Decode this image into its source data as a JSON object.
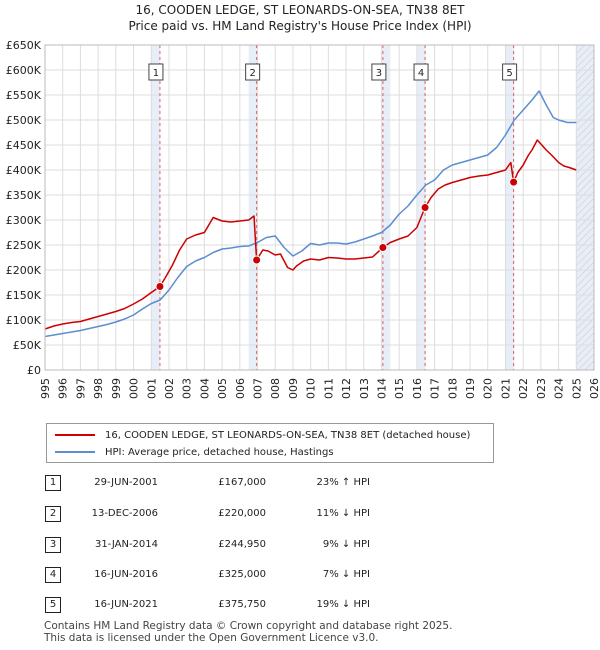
{
  "title": "16, COODEN LEDGE, ST LEONARDS-ON-SEA, TN38 8ET",
  "subtitle": "Price paid vs. HM Land Registry's House Price Index (HPI)",
  "colors": {
    "price": "#cc0000",
    "hpi": "#5b8ed0",
    "band": "#e8eef8",
    "grid": "#dddddd",
    "vline": "#e06060"
  },
  "legend": {
    "price_label": "16, COODEN LEDGE, ST LEONARDS-ON-SEA, TN38 8ET (detached house)",
    "hpi_label": "HPI: Average price, detached house, Hastings"
  },
  "transactions": [
    {
      "id": "1",
      "date": "29-JUN-2001",
      "price": "£167,000",
      "hpi": "23% ↑ HPI"
    },
    {
      "id": "2",
      "date": "13-DEC-2006",
      "price": "£220,000",
      "hpi": "11% ↓ HPI"
    },
    {
      "id": "3",
      "date": "31-JAN-2014",
      "price": "£244,950",
      "hpi": "9% ↓ HPI"
    },
    {
      "id": "4",
      "date": "16-JUN-2016",
      "price": "£325,000",
      "hpi": "7% ↓ HPI"
    },
    {
      "id": "5",
      "date": "16-JUN-2021",
      "price": "£375,750",
      "hpi": "19% ↓ HPI"
    }
  ],
  "footer": {
    "line1": "Contains HM Land Registry data © Crown copyright and database right 2025.",
    "line2": "This data is licensed under the Open Government Licence v3.0."
  },
  "chart_data": {
    "type": "line",
    "title": "16, COODEN LEDGE, ST LEONARDS-ON-SEA, TN38 8ET",
    "subtitle": "Price paid vs. HM Land Registry's House Price Index (HPI)",
    "xlabel": "",
    "ylabel": "",
    "xlim": [
      1995,
      2026
    ],
    "ylim": [
      0,
      650000
    ],
    "grid": true,
    "y_ticks": [
      0,
      50000,
      100000,
      150000,
      200000,
      250000,
      300000,
      350000,
      400000,
      450000,
      500000,
      550000,
      600000,
      650000
    ],
    "y_tick_labels": [
      "£0",
      "£50K",
      "£100K",
      "£150K",
      "£200K",
      "£250K",
      "£300K",
      "£350K",
      "£400K",
      "£450K",
      "£500K",
      "£550K",
      "£600K",
      "£650K"
    ],
    "x_ticks": [
      1995,
      1996,
      1997,
      1998,
      1999,
      2000,
      2001,
      2002,
      2003,
      2004,
      2005,
      2006,
      2007,
      2008,
      2009,
      2010,
      2011,
      2012,
      2013,
      2014,
      2015,
      2016,
      2017,
      2018,
      2019,
      2020,
      2021,
      2022,
      2023,
      2024,
      2025,
      2026
    ],
    "x_tick_labels": [
      "1995",
      "1996",
      "1997",
      "1998",
      "1999",
      "2000",
      "2001",
      "2002",
      "2003",
      "2004",
      "2005",
      "2006",
      "2007",
      "2008",
      "2009",
      "2010",
      "2011",
      "2012",
      "2013",
      "2014",
      "2015",
      "2016",
      "2017",
      "2018",
      "2019",
      "2020",
      "2021",
      "2022",
      "2023",
      "2024",
      "2025",
      "2026"
    ],
    "bands": [
      [
        2001.0,
        2001.5
      ],
      [
        2006.5,
        2007.0
      ],
      [
        2014.0,
        2014.5
      ],
      [
        2016.0,
        2016.5
      ],
      [
        2021.0,
        2021.5
      ],
      [
        2025.0,
        2026.0
      ]
    ],
    "hatched_from": 2025.0,
    "series": [
      {
        "name": "16, COODEN LEDGE, ST LEONARDS-ON-SEA, TN38 8ET (detached house)",
        "x": [
          1995.0,
          1995.5,
          1996.0,
          1996.5,
          1997.0,
          1997.5,
          1998.0,
          1998.5,
          1999.0,
          1999.5,
          2000.0,
          2000.5,
          2001.0,
          2001.49,
          2001.8,
          2002.2,
          2002.6,
          2003.0,
          2003.5,
          2004.0,
          2004.5,
          2005.0,
          2005.5,
          2006.0,
          2006.5,
          2006.8,
          2006.95,
          2007.3,
          2007.6,
          2008.0,
          2008.3,
          2008.7,
          2009.0,
          2009.2,
          2009.6,
          2010.0,
          2010.5,
          2011.0,
          2011.5,
          2012.0,
          2012.5,
          2013.0,
          2013.5,
          2014.08,
          2014.5,
          2015.0,
          2015.5,
          2016.0,
          2016.46,
          2016.8,
          2017.2,
          2017.6,
          2018.0,
          2018.5,
          2019.0,
          2019.5,
          2020.0,
          2020.5,
          2021.0,
          2021.3,
          2021.46,
          2021.7,
          2022.0,
          2022.3,
          2022.5,
          2022.8,
          2023.0,
          2023.3,
          2023.6,
          2024.0,
          2024.3,
          2024.6,
          2025.0
        ],
        "values": [
          82000,
          88000,
          92000,
          95000,
          97000,
          102000,
          107000,
          112000,
          117000,
          123000,
          132000,
          142000,
          155000,
          167000,
          185000,
          210000,
          240000,
          262000,
          270000,
          275000,
          305000,
          298000,
          296000,
          298000,
          300000,
          308000,
          220000,
          240000,
          238000,
          230000,
          232000,
          205000,
          200000,
          208000,
          218000,
          222000,
          220000,
          225000,
          224000,
          222000,
          222000,
          224000,
          226000,
          244950,
          255000,
          262000,
          268000,
          285000,
          325000,
          345000,
          362000,
          370000,
          375000,
          380000,
          385000,
          388000,
          390000,
          395000,
          400000,
          415000,
          375750,
          395000,
          410000,
          430000,
          440000,
          460000,
          452000,
          440000,
          430000,
          415000,
          408000,
          405000,
          400000
        ]
      },
      {
        "name": "HPI: Average price, detached house, Hastings",
        "x": [
          1995.0,
          1995.5,
          1996.0,
          1996.5,
          1997.0,
          1997.5,
          1998.0,
          1998.5,
          1999.0,
          1999.5,
          2000.0,
          2000.5,
          2001.0,
          2001.5,
          2002.0,
          2002.5,
          2003.0,
          2003.5,
          2004.0,
          2004.5,
          2005.0,
          2005.5,
          2006.0,
          2006.5,
          2007.0,
          2007.5,
          2008.0,
          2008.5,
          2009.0,
          2009.5,
          2010.0,
          2010.5,
          2011.0,
          2011.5,
          2012.0,
          2012.5,
          2013.0,
          2013.5,
          2014.0,
          2014.5,
          2015.0,
          2015.5,
          2016.0,
          2016.5,
          2017.0,
          2017.5,
          2018.0,
          2018.5,
          2019.0,
          2019.5,
          2020.0,
          2020.5,
          2021.0,
          2021.5,
          2022.0,
          2022.5,
          2022.9,
          2023.3,
          2023.7,
          2024.0,
          2024.5,
          2025.0
        ],
        "values": [
          67000,
          70000,
          73000,
          76000,
          79000,
          83000,
          87000,
          91000,
          96000,
          102000,
          110000,
          122000,
          133000,
          140000,
          160000,
          185000,
          207000,
          218000,
          225000,
          235000,
          242000,
          244000,
          247000,
          248000,
          255000,
          265000,
          268000,
          245000,
          228000,
          238000,
          253000,
          250000,
          254000,
          254000,
          252000,
          256000,
          262000,
          268000,
          275000,
          290000,
          312000,
          328000,
          350000,
          370000,
          380000,
          400000,
          410000,
          415000,
          420000,
          425000,
          430000,
          445000,
          470000,
          500000,
          520000,
          540000,
          558000,
          530000,
          505000,
          500000,
          495000,
          495000
        ]
      }
    ],
    "markers": [
      {
        "id": "1",
        "x": 2001.49,
        "y": 167000
      },
      {
        "id": "2",
        "x": 2006.95,
        "y": 220000
      },
      {
        "id": "3",
        "x": 2014.08,
        "y": 244950
      },
      {
        "id": "4",
        "x": 2016.46,
        "y": 325000
      },
      {
        "id": "5",
        "x": 2021.46,
        "y": 375750
      }
    ]
  }
}
